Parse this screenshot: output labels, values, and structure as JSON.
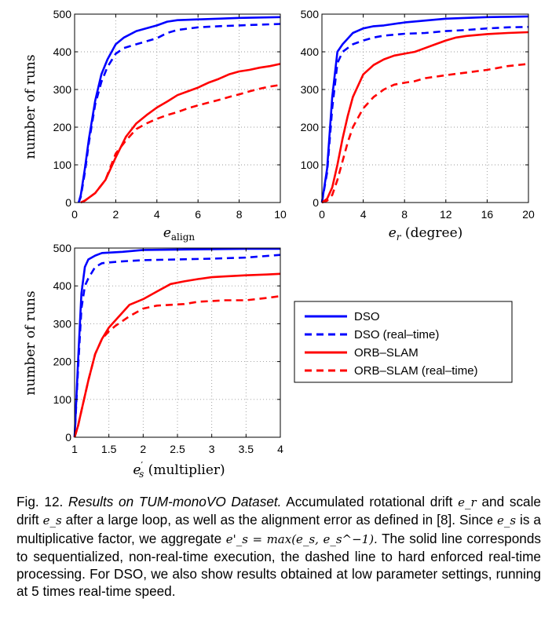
{
  "chart_data": [
    {
      "type": "line",
      "xlabel": "e_align",
      "ylabel": "number of runs",
      "xlim": [
        0,
        10
      ],
      "ylim": [
        0,
        500
      ],
      "xticks": [
        "0",
        "2",
        "4",
        "6",
        "8",
        "10"
      ],
      "yticks": [
        "0",
        "100",
        "200",
        "300",
        "400",
        "500"
      ],
      "grid": true,
      "series": [
        {
          "name": "DSO",
          "color": "#0000ff",
          "style": "solid",
          "x": [
            0.2,
            0.3,
            0.5,
            0.7,
            1.0,
            1.3,
            1.6,
            2.0,
            2.4,
            3.0,
            4.0,
            4.5,
            5.0,
            6.0,
            7.0,
            8.0,
            9.0,
            10.0
          ],
          "y": [
            0,
            20,
            90,
            170,
            270,
            340,
            380,
            420,
            438,
            455,
            470,
            480,
            484,
            486,
            488,
            490,
            491,
            492
          ]
        },
        {
          "name": "DSO (real-time)",
          "color": "#0000ff",
          "style": "dashed",
          "x": [
            0.2,
            0.3,
            0.5,
            0.7,
            1.0,
            1.3,
            1.6,
            2.0,
            2.4,
            3.0,
            4.0,
            4.5,
            5.0,
            6.0,
            7.0,
            8.0,
            9.0,
            10.0
          ],
          "y": [
            0,
            15,
            80,
            160,
            260,
            320,
            360,
            395,
            410,
            420,
            436,
            450,
            458,
            465,
            468,
            470,
            472,
            474
          ]
        },
        {
          "name": "ORB-SLAM",
          "color": "#ff0000",
          "style": "solid",
          "x": [
            0.3,
            0.5,
            1.0,
            1.5,
            2.0,
            2.5,
            3.0,
            3.5,
            4.0,
            4.5,
            5.0,
            5.5,
            6.0,
            6.5,
            7.0,
            7.5,
            8.0,
            8.5,
            9.0,
            9.5,
            10.0
          ],
          "y": [
            0,
            5,
            25,
            60,
            120,
            175,
            210,
            232,
            252,
            268,
            285,
            295,
            305,
            318,
            328,
            340,
            348,
            352,
            358,
            362,
            368
          ]
        },
        {
          "name": "ORB-SLAM (real-time)",
          "color": "#ff0000",
          "style": "dashed",
          "x": [
            0.3,
            0.5,
            1.0,
            1.5,
            2.0,
            2.5,
            3.0,
            3.5,
            4.0,
            4.5,
            5.0,
            5.5,
            6.0,
            6.5,
            7.0,
            7.5,
            8.0,
            8.5,
            9.0,
            9.5,
            10.0
          ],
          "y": [
            0,
            5,
            25,
            60,
            130,
            165,
            195,
            210,
            222,
            232,
            240,
            250,
            258,
            265,
            272,
            280,
            287,
            295,
            302,
            308,
            312
          ]
        }
      ]
    },
    {
      "type": "line",
      "xlabel": "e_r (degree)",
      "ylabel": "",
      "xlim": [
        0,
        20
      ],
      "ylim": [
        0,
        500
      ],
      "xticks": [
        "0",
        "4",
        "8",
        "12",
        "16",
        "20"
      ],
      "yticks": [
        "0",
        "100",
        "200",
        "300",
        "400",
        "500"
      ],
      "grid": true,
      "series": [
        {
          "name": "DSO",
          "color": "#0000ff",
          "style": "solid",
          "x": [
            0,
            0.5,
            1,
            1.5,
            2,
            3,
            4,
            5,
            6,
            8,
            10,
            12,
            14,
            16,
            18,
            20
          ],
          "y": [
            0,
            90,
            280,
            400,
            420,
            450,
            462,
            468,
            470,
            478,
            483,
            488,
            490,
            492,
            493,
            494
          ]
        },
        {
          "name": "DSO (real-time)",
          "color": "#0000ff",
          "style": "dashed",
          "x": [
            0,
            0.5,
            1,
            1.5,
            2,
            3,
            4,
            5,
            6,
            8,
            10,
            12,
            14,
            16,
            18,
            20
          ],
          "y": [
            0,
            80,
            250,
            370,
            400,
            420,
            430,
            438,
            443,
            448,
            450,
            455,
            458,
            462,
            465,
            466
          ]
        },
        {
          "name": "ORB-SLAM",
          "color": "#ff0000",
          "style": "solid",
          "x": [
            0,
            0.5,
            1,
            1.5,
            2,
            2.5,
            3,
            4,
            5,
            6,
            7,
            8,
            9,
            10,
            11,
            12,
            13,
            14,
            16,
            18,
            20
          ],
          "y": [
            0,
            10,
            40,
            100,
            170,
            230,
            280,
            340,
            365,
            380,
            390,
            395,
            400,
            410,
            420,
            430,
            438,
            442,
            447,
            450,
            452
          ]
        },
        {
          "name": "ORB-SLAM (real-time)",
          "color": "#ff0000",
          "style": "dashed",
          "x": [
            0,
            0.5,
            1,
            1.5,
            2,
            2.5,
            3,
            4,
            5,
            6,
            7,
            8,
            9,
            10,
            12,
            14,
            16,
            18,
            20
          ],
          "y": [
            0,
            5,
            20,
            60,
            110,
            160,
            200,
            250,
            280,
            300,
            313,
            318,
            322,
            330,
            338,
            345,
            352,
            362,
            368
          ]
        }
      ]
    },
    {
      "type": "line",
      "xlabel": "e'_s (multiplier)",
      "ylabel": "number of runs",
      "xlim": [
        1,
        4
      ],
      "ylim": [
        0,
        500
      ],
      "xticks": [
        "1",
        "1.5",
        "2",
        "2.5",
        "3",
        "3.5",
        "4"
      ],
      "yticks": [
        "0",
        "100",
        "200",
        "300",
        "400",
        "500"
      ],
      "grid": true,
      "series": [
        {
          "name": "DSO",
          "color": "#0000ff",
          "style": "solid",
          "x": [
            1,
            1.05,
            1.1,
            1.15,
            1.2,
            1.3,
            1.4,
            1.5,
            1.7,
            2,
            2.5,
            3,
            3.5,
            4
          ],
          "y": [
            0,
            200,
            380,
            450,
            470,
            480,
            487,
            488,
            490,
            495,
            496,
            497,
            498,
            498
          ]
        },
        {
          "name": "DSO (real-time)",
          "color": "#0000ff",
          "style": "dashed",
          "x": [
            1,
            1.05,
            1.1,
            1.15,
            1.2,
            1.3,
            1.4,
            1.5,
            1.7,
            2,
            2.5,
            3,
            3.5,
            4
          ],
          "y": [
            0,
            180,
            340,
            400,
            420,
            450,
            460,
            462,
            465,
            468,
            470,
            472,
            475,
            482
          ]
        },
        {
          "name": "ORB-SLAM",
          "color": "#ff0000",
          "style": "solid",
          "x": [
            1,
            1.05,
            1.1,
            1.2,
            1.3,
            1.4,
            1.5,
            1.6,
            1.8,
            2,
            2.2,
            2.4,
            2.6,
            2.8,
            3,
            3.2,
            3.5,
            3.8,
            4
          ],
          "y": [
            0,
            30,
            70,
            150,
            220,
            260,
            290,
            310,
            350,
            365,
            385,
            405,
            412,
            418,
            423,
            425,
            428,
            430,
            432
          ]
        },
        {
          "name": "ORB-SLAM (real-time)",
          "color": "#ff0000",
          "style": "dashed",
          "x": [
            1,
            1.05,
            1.1,
            1.2,
            1.3,
            1.4,
            1.5,
            1.6,
            1.8,
            2,
            2.2,
            2.4,
            2.6,
            2.8,
            3,
            3.2,
            3.5,
            3.8,
            4
          ],
          "y": [
            0,
            30,
            70,
            150,
            220,
            260,
            280,
            295,
            320,
            340,
            348,
            350,
            352,
            358,
            360,
            362,
            362,
            368,
            373
          ]
        }
      ]
    }
  ],
  "legend": {
    "entries": [
      {
        "label": "DSO",
        "color": "#0000ff",
        "style": "solid"
      },
      {
        "label": "DSO (real–time)",
        "color": "#0000ff",
        "style": "dashed"
      },
      {
        "label": "ORB–SLAM",
        "color": "#ff0000",
        "style": "solid"
      },
      {
        "label": "ORB–SLAM (real–time)",
        "color": "#ff0000",
        "style": "dashed"
      }
    ]
  },
  "caption": {
    "label": "Fig. 12.",
    "title": "Results on TUM-monoVO Dataset.",
    "t1": "Accumulated rotational drift",
    "m1": "e_r",
    "t2": "and scale drift",
    "m2": "e_s",
    "t3": "after a large loop, as well as the alignment error as defined in [8]. Since",
    "m3": "e_s",
    "t4": "is a multiplicative factor, we aggregate",
    "m4": "e'_s = max(e_s, e_s^−1).",
    "t5": "The solid line corresponds to sequentialized, non-real-time execution, the dashed line to hard enforced real-time processing. For DSO, we also show results obtained at low parameter settings, running at 5 times real-time speed."
  }
}
